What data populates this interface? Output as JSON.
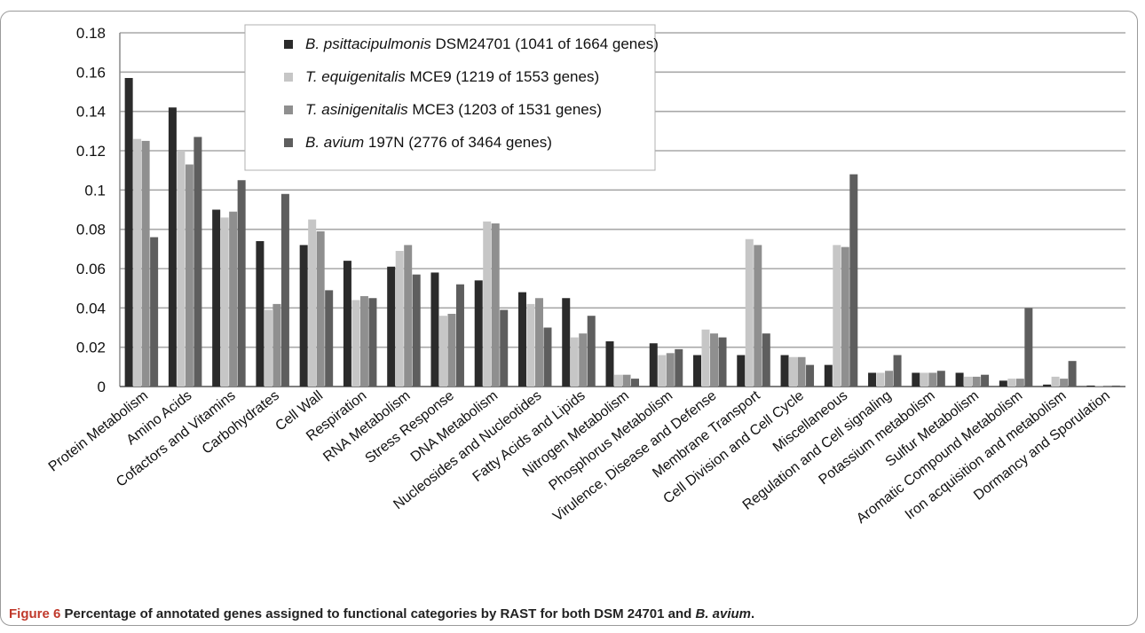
{
  "chart_data": {
    "type": "bar",
    "title": "",
    "xlabel": "",
    "ylabel": "",
    "ylim": [
      0,
      0.18
    ],
    "yticks": [
      0,
      0.02,
      0.04,
      0.06,
      0.08,
      0.1,
      0.12,
      0.14,
      0.16,
      0.18
    ],
    "ytick_labels": [
      "0",
      "0.02",
      "0.04",
      "0.06",
      "0.08",
      "0.1",
      "0.12",
      "0.14",
      "0.16",
      "0.18"
    ],
    "grid": true,
    "legend_position": "top-center",
    "categories": [
      "Protein Metabolism",
      "Amino Acids",
      "Cofactors and Vitamins",
      "Carbohydrates",
      "Cell Wall",
      "Respiration",
      "RNA Metabolism",
      "Stress Response",
      "DNA Metabolism",
      "Nucleosides and Nucleotides",
      "Fatty Acids and Lipids",
      "Nitrogen Metabolism",
      "Phosphorus Metabolism",
      "Virulence, Disease and Defense",
      "Membrane Transport",
      "Cell Division and Cell Cycle",
      "Miscellaneous",
      "Regulation and Cell signaling",
      "Potassium metabolism",
      "Sulfur Metabolism",
      "Aromatic Compound Metabolism",
      "Iron acquisition and metabolism",
      "Dormancy and Sporulation"
    ],
    "series": [
      {
        "name_italic": "B. psittacipulmonis",
        "name_rest": " DSM24701 (1041 of 1664 genes)",
        "color": "#2b2b2b",
        "values": [
          0.157,
          0.142,
          0.09,
          0.074,
          0.072,
          0.064,
          0.061,
          0.058,
          0.054,
          0.048,
          0.045,
          0.023,
          0.022,
          0.016,
          0.016,
          0.016,
          0.011,
          0.007,
          0.007,
          0.007,
          0.003,
          0.001,
          0.0005
        ]
      },
      {
        "name_italic": "T. equigenitalis",
        "name_rest": " MCE9 (1219 of 1553 genes)",
        "color": "#c6c6c6",
        "values": [
          0.126,
          0.12,
          0.086,
          0.039,
          0.085,
          0.044,
          0.069,
          0.036,
          0.084,
          0.042,
          0.025,
          0.006,
          0.016,
          0.029,
          0.075,
          0.015,
          0.072,
          0.007,
          0.007,
          0.005,
          0.004,
          0.005,
          0.0005
        ]
      },
      {
        "name_italic": "T. asinigenitalis",
        "name_rest": " MCE3 (1203 of 1531 genes)",
        "color": "#8f8f8f",
        "values": [
          0.125,
          0.113,
          0.089,
          0.042,
          0.079,
          0.046,
          0.072,
          0.037,
          0.083,
          0.045,
          0.027,
          0.006,
          0.017,
          0.027,
          0.072,
          0.015,
          0.071,
          0.008,
          0.007,
          0.005,
          0.004,
          0.004,
          0.0005
        ]
      },
      {
        "name_italic": "B. avium",
        "name_rest": " 197N (2776 of 3464 genes)",
        "color": "#5e5e5e",
        "values": [
          0.076,
          0.127,
          0.105,
          0.098,
          0.049,
          0.045,
          0.057,
          0.052,
          0.039,
          0.03,
          0.036,
          0.004,
          0.019,
          0.025,
          0.027,
          0.011,
          0.108,
          0.016,
          0.008,
          0.006,
          0.04,
          0.013,
          0.0005
        ]
      }
    ]
  },
  "caption": {
    "label": "Figure 6",
    "text": " Percentage of annotated genes assigned to functional categories by RAST for both DSM 24701 and ",
    "italic": "B. avium",
    "end": "."
  }
}
